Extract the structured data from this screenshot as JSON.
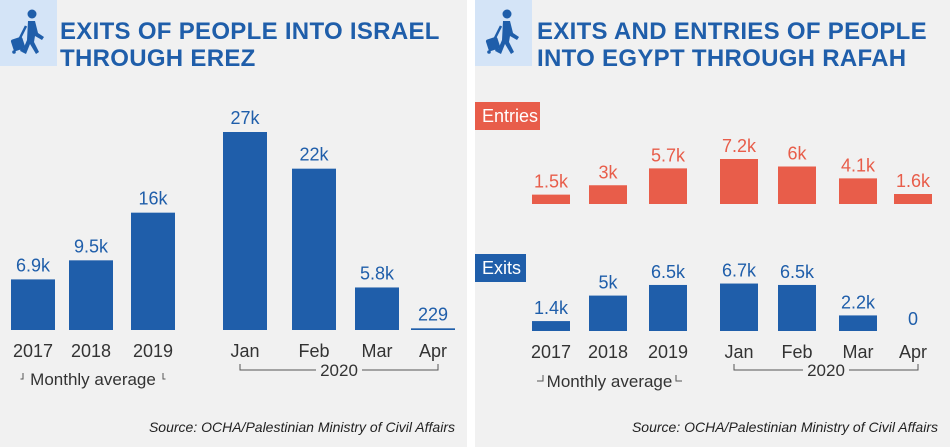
{
  "source": "Source: OCHA/Palestinian Ministry of Civil Affairs",
  "colors": {
    "blue": "#1f5eaa",
    "orange": "#e85d4a",
    "panel_bg": "#f1f1f1",
    "icon_bg": "#d4e4f7"
  },
  "icon": "walking-traveler-with-suitcase-icon",
  "chart_data": [
    {
      "type": "bar",
      "title": "EXITS OF PEOPLE INTO ISRAEL THROUGH EREZ",
      "title_lines": [
        "EXITS OF PEOPLE INTO ISRAEL",
        "THROUGH EREZ"
      ],
      "categories": [
        "2017",
        "2018",
        "2019",
        "Jan",
        "Feb",
        "Mar",
        "Apr"
      ],
      "values": [
        6900,
        9500,
        16000,
        27000,
        22000,
        5800,
        229
      ],
      "labels": [
        "6.9k",
        "9.5k",
        "16k",
        "27k",
        "22k",
        "5.8k",
        "229"
      ],
      "groups": [
        {
          "label": "Monthly average",
          "from": 0,
          "to": 2
        },
        {
          "label": "2020",
          "from": 3,
          "to": 6
        }
      ],
      "ylim": [
        0,
        27000
      ],
      "grid": false
    },
    {
      "type": "bar",
      "title": "EXITS AND ENTRIES OF PEOPLE INTO EGYPT THROUGH RAFAH",
      "title_lines": [
        "EXITS AND ENTRIES OF PEOPLE",
        "INTO EGYPT THROUGH RAFAH"
      ],
      "categories": [
        "2017",
        "2018",
        "2019",
        "Jan",
        "Feb",
        "Mar",
        "Apr"
      ],
      "series": [
        {
          "name": "Entries",
          "values": [
            1500,
            3000,
            5700,
            7200,
            6000,
            4100,
            1600
          ],
          "labels": [
            "1.5k",
            "3k",
            "5.7k",
            "7.2k",
            "6k",
            "4.1k",
            "1.6k"
          ]
        },
        {
          "name": "Exits",
          "values": [
            1400,
            5000,
            6500,
            6700,
            6500,
            2200,
            0
          ],
          "labels": [
            "1.4k",
            "5k",
            "6.5k",
            "6.7k",
            "6.5k",
            "2.2k",
            "0"
          ]
        }
      ],
      "groups": [
        {
          "label": "Monthly average",
          "from": 0,
          "to": 2
        },
        {
          "label": "2020",
          "from": 3,
          "to": 6
        }
      ],
      "ylim": [
        0,
        7200
      ],
      "grid": false
    }
  ]
}
